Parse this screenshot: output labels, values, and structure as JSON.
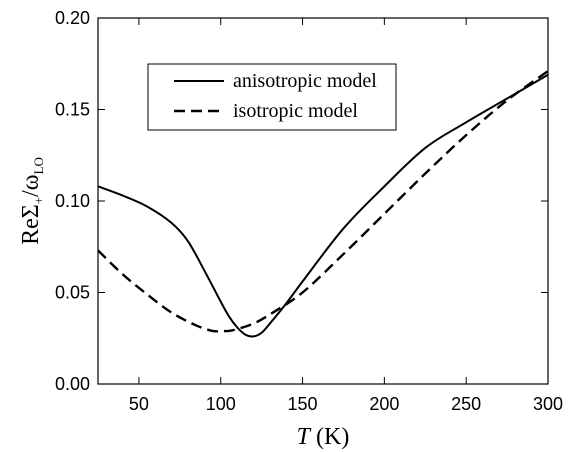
{
  "chart_data": {
    "type": "line",
    "xlabel": {
      "italic": "T",
      "rest": " (K)"
    },
    "ylabel": {
      "main": "ReΣ",
      "sub": "+",
      "slash": "/ω",
      "sub2": "LO"
    },
    "xlim": [
      25,
      300
    ],
    "ylim": [
      0.0,
      0.2
    ],
    "xticks": [
      50,
      100,
      150,
      200,
      250,
      300
    ],
    "xtick_labels": [
      "50",
      "100",
      "150",
      "200",
      "250",
      "300"
    ],
    "yticks": [
      0.0,
      0.05,
      0.1,
      0.15,
      0.2
    ],
    "ytick_labels": [
      "0.00",
      "0.05",
      "0.10",
      "0.15",
      "0.20"
    ],
    "grid": false,
    "legend_position": "top-center",
    "series": [
      {
        "name": "anisotropic model",
        "style": "solid",
        "color": "#000000",
        "x": [
          25,
          40,
          55,
          70,
          80,
          90,
          100,
          105,
          110,
          115,
          120,
          125,
          130,
          140,
          150,
          175,
          200,
          225,
          250,
          275,
          300
        ],
        "y": [
          0.108,
          0.103,
          0.097,
          0.088,
          0.078,
          0.062,
          0.045,
          0.037,
          0.031,
          0.027,
          0.026,
          0.028,
          0.033,
          0.044,
          0.056,
          0.085,
          0.108,
          0.129,
          0.143,
          0.156,
          0.169
        ]
      },
      {
        "name": "isotropic model",
        "style": "dashed",
        "color": "#000000",
        "x": [
          25,
          40,
          55,
          70,
          85,
          95,
          100,
          105,
          110,
          120,
          130,
          150,
          175,
          200,
          225,
          250,
          275,
          300
        ],
        "y": [
          0.073,
          0.06,
          0.049,
          0.039,
          0.032,
          0.029,
          0.029,
          0.029,
          0.03,
          0.033,
          0.038,
          0.05,
          0.071,
          0.093,
          0.115,
          0.136,
          0.155,
          0.171
        ]
      }
    ]
  }
}
